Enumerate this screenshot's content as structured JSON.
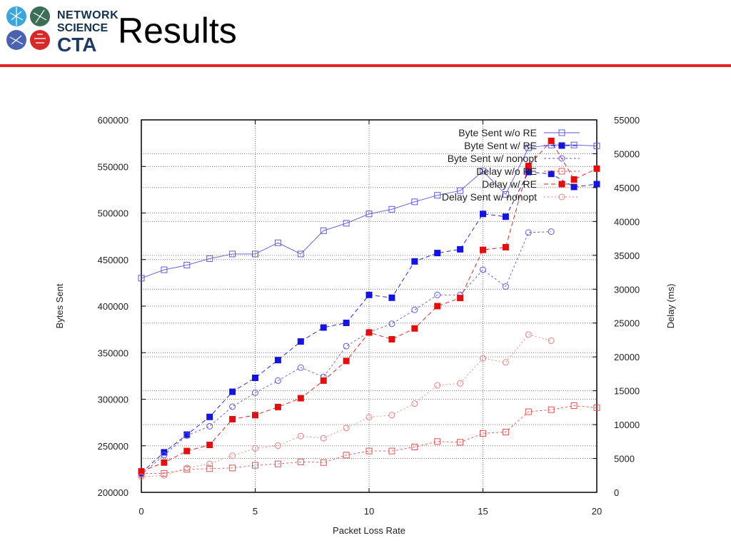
{
  "header": {
    "title": "Results",
    "logo_lines": [
      "NETWORK",
      "SCIENCE",
      "CTA"
    ],
    "rule_color": "#e3231f"
  },
  "chart_data": {
    "type": "line",
    "xlabel": "Packet Loss Rate",
    "ylabel": "Bytes Sent",
    "y2label": "Delay (ms)",
    "xlim": [
      0,
      20
    ],
    "ylim": [
      200000,
      600000
    ],
    "y2lim": [
      0,
      55000
    ],
    "xticks": [
      0,
      5,
      10,
      15,
      20
    ],
    "yticks": [
      200000,
      250000,
      300000,
      350000,
      400000,
      450000,
      500000,
      550000,
      600000
    ],
    "y2ticks": [
      0,
      5000,
      10000,
      15000,
      20000,
      25000,
      30000,
      35000,
      40000,
      45000,
      50000,
      55000
    ],
    "grid": true,
    "legend_position": "top-right",
    "x": [
      0,
      1,
      2,
      3,
      4,
      5,
      6,
      7,
      8,
      9,
      10,
      11,
      12,
      13,
      14,
      15,
      16,
      17,
      18,
      19,
      20
    ],
    "series": [
      {
        "name": "Byte Sent w/o RE",
        "axis": "left",
        "color": "#5a5adc",
        "marker": "open-square",
        "dash": "none",
        "values": [
          430000,
          439000,
          444000,
          451000,
          456000,
          456000,
          468000,
          456000,
          481000,
          489000,
          499000,
          504000,
          512000,
          519000,
          524000,
          545000,
          520000,
          570000,
          573000,
          573000,
          572000
        ]
      },
      {
        "name": "Byte Sent w/ RE",
        "axis": "left",
        "color": "#1414dc",
        "marker": "filled-square",
        "dash": "6,4",
        "values": [
          221000,
          243000,
          262000,
          281000,
          308000,
          323000,
          342000,
          362000,
          377000,
          382000,
          412000,
          409000,
          448000,
          457000,
          461000,
          499000,
          496000,
          544000,
          542000,
          528000,
          531000
        ]
      },
      {
        "name": "Byte Sent w/ nonopt",
        "axis": "left",
        "color": "#5a5adc",
        "marker": "open-circle",
        "dash": "3,3",
        "values": [
          219000,
          240000,
          261000,
          271000,
          292000,
          307000,
          320000,
          334000,
          324000,
          357000,
          372000,
          381000,
          396000,
          412000,
          412000,
          439000,
          421000,
          479000,
          480000,
          null,
          null
        ]
      },
      {
        "name": "Delay w/o RE",
        "axis": "right",
        "color": "#e05050",
        "marker": "open-square",
        "dash": "3,3",
        "values": [
          2800,
          2800,
          3400,
          3500,
          3600,
          4000,
          4200,
          4500,
          4400,
          5500,
          6100,
          6100,
          6700,
          7500,
          7400,
          8700,
          8900,
          11900,
          12200,
          12800,
          12500
        ]
      },
      {
        "name": "Delay w/ RE",
        "axis": "right",
        "color": "#e01010",
        "marker": "filled-square",
        "dash": "6,4",
        "values": [
          3100,
          4400,
          6100,
          7000,
          10800,
          11400,
          12600,
          13900,
          16500,
          19400,
          23600,
          22600,
          24200,
          27500,
          28700,
          35800,
          36200,
          48200,
          51900,
          46200,
          47800
        ]
      },
      {
        "name": "Delay Sent w/ nonopt",
        "axis": "right",
        "color": "#e88080",
        "marker": "open-circle",
        "dash": "2,3",
        "values": [
          2300,
          2500,
          3600,
          4200,
          5400,
          6500,
          6900,
          8300,
          8000,
          9500,
          11100,
          11400,
          13100,
          15800,
          16100,
          19800,
          19200,
          23300,
          22400,
          null,
          null
        ]
      }
    ]
  }
}
